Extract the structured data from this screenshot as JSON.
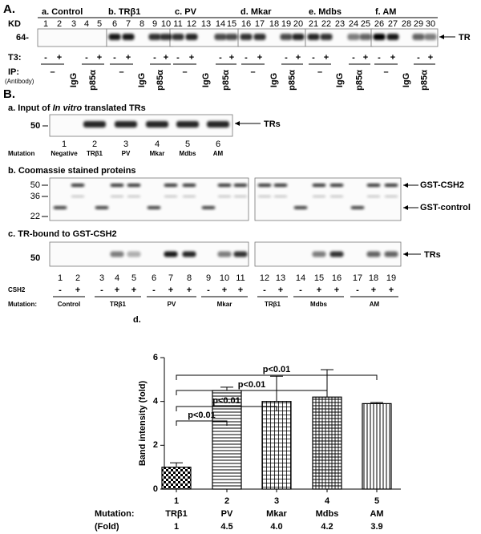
{
  "panel_a": {
    "label": "A.",
    "kd": "KD",
    "marker": "64-",
    "groups": [
      "a. Control",
      "b. TRβ1",
      "c. PV",
      "d. Mkar",
      "e. Mdbs",
      "f. AM"
    ],
    "lanes": [
      1,
      2,
      3,
      4,
      5,
      6,
      7,
      8,
      9,
      10,
      11,
      12,
      13,
      14,
      15,
      16,
      17,
      18,
      19,
      20,
      21,
      22,
      23,
      24,
      25,
      26,
      27,
      28,
      29,
      30
    ],
    "band": "TR",
    "t3_label": "T3:",
    "t3": [
      "-",
      "+",
      "-",
      "+",
      "-",
      "+",
      "-",
      "+",
      "-",
      "+",
      "-",
      "+",
      "-",
      "+",
      "-",
      "+",
      "-",
      "+",
      "-",
      "+",
      "-",
      "+",
      "-",
      "+"
    ],
    "ip_label": "IP:",
    "antibody": "(Antibody)",
    "ip": [
      "–",
      "IgG",
      "p85α",
      "–",
      "IgG",
      "p85α",
      "–",
      "IgG",
      "p85α",
      "–",
      "IgG",
      "p85α",
      "–",
      "IgG",
      "p85α",
      "–",
      "IgG",
      "p85α"
    ]
  },
  "panel_b": {
    "label": "B.",
    "a": {
      "title_pre": "a. Input of ",
      "title_em": "In vitro",
      "title_post": " translated TRs",
      "marker": "50",
      "band": "TRs",
      "lanes": [
        1,
        2,
        3,
        4,
        5,
        6
      ],
      "mutation_label": "Mutation",
      "mutations": [
        "Negative",
        "TRβ1",
        "PV",
        "Mkar",
        "Mdbs",
        "AM"
      ]
    },
    "b": {
      "title": "b. Coomassie stained proteins",
      "markers": [
        50,
        36,
        22
      ],
      "bands": [
        "GST-CSH2",
        "GST-control"
      ]
    },
    "c": {
      "title": "c. TR-bound to GST-CSH2",
      "marker": "50",
      "band": "TRs",
      "lanes": [
        1,
        2,
        3,
        4,
        5,
        6,
        7,
        8,
        9,
        10,
        11,
        12,
        13,
        14,
        15,
        16,
        17,
        18,
        19
      ],
      "csh2_label": "CSH2",
      "csh2": [
        "-",
        "+",
        "-",
        "+",
        "+",
        "-",
        "+",
        "+",
        "-",
        "+",
        "+",
        "-",
        "+",
        "-",
        "+",
        "+",
        "-",
        "+",
        "+"
      ],
      "mutation_label": "Mutation:",
      "groups": [
        "Control",
        "TRβ1",
        "PV",
        "Mkar",
        "TRβ1",
        "Mdbs",
        "AM"
      ]
    }
  },
  "chart_data": {
    "type": "bar",
    "label": "d.",
    "ylabel": "Band intensity (fold)",
    "categories": [
      "1",
      "2",
      "3",
      "4",
      "5"
    ],
    "mutation_label": "Mutation:",
    "mutations": [
      "TRβ1",
      "PV",
      "Mkar",
      "Mdbs",
      "AM"
    ],
    "fold_label": "(Fold)",
    "values": [
      1,
      4.5,
      4.0,
      4.2,
      3.9
    ],
    "value_labels": [
      "1",
      "4.5",
      "4.0",
      "4.2",
      "3.9"
    ],
    "errors": [
      0.2,
      0.15,
      1.15,
      1.25,
      0.05
    ],
    "ylim": [
      0,
      6
    ],
    "yticks": [
      0,
      2,
      4,
      6
    ],
    "annotations": [
      "p<0.01",
      "p<0.01",
      "p<0.01",
      "p<0.01"
    ]
  }
}
